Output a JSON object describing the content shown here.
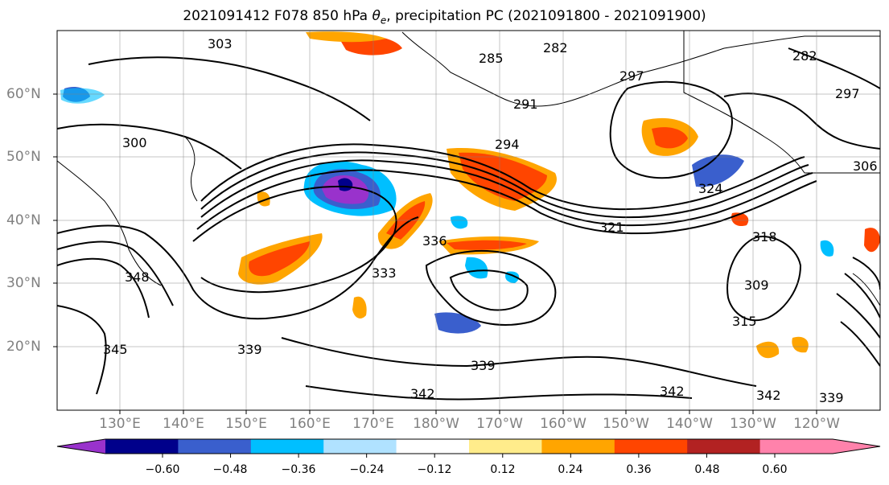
{
  "title": {
    "main": "2021091412 F078 850 hPa ",
    "theta_symbol": "θ",
    "theta_sub": "e",
    "rest": ", precipitation PC (2021091800 - 2021091900)"
  },
  "map": {
    "lat_labels": [
      "60°N",
      "50°N",
      "40°N",
      "30°N",
      "20°N"
    ],
    "lon_labels": [
      "130°E",
      "140°E",
      "150°E",
      "160°E",
      "170°E",
      "180°W",
      "170°W",
      "160°W",
      "150°W",
      "140°W",
      "130°W",
      "120°W"
    ]
  },
  "contour_labels": [
    "303",
    "300",
    "291",
    "297",
    "294",
    "285",
    "282",
    "309",
    "318",
    "321",
    "324",
    "315",
    "333",
    "336",
    "339",
    "342",
    "345",
    "348",
    "306"
  ],
  "colorbar": {
    "ticks": [
      "−0.60",
      "−0.48",
      "−0.36",
      "−0.24",
      "−0.12",
      "0.12",
      "0.24",
      "0.36",
      "0.48",
      "0.60"
    ],
    "colors": [
      "#9932cc",
      "#00008b",
      "#3a5fcd",
      "#00bfff",
      "#b0e2ff",
      "#ffffff",
      "#ffec8b",
      "#ffa500",
      "#ff4500",
      "#b22222",
      "#ff82ab"
    ]
  }
}
